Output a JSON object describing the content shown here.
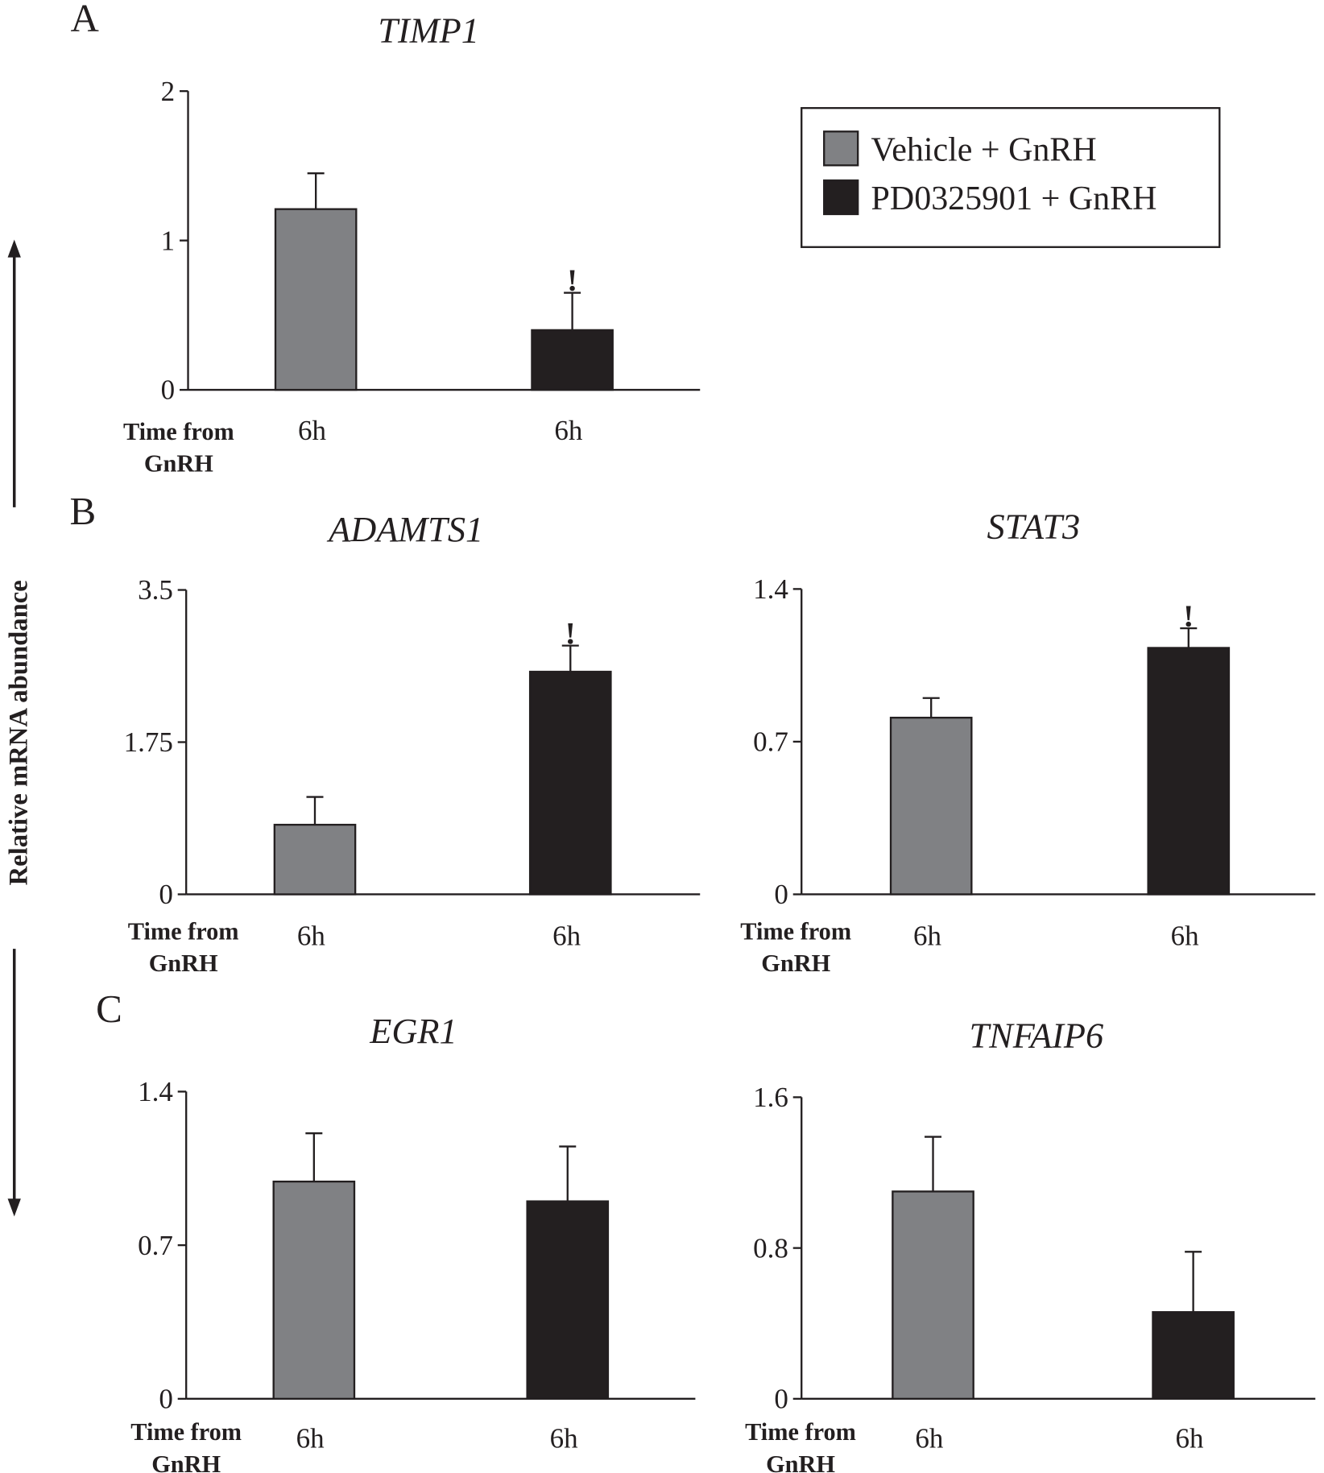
{
  "panel_labels": [
    "A",
    "B",
    "C"
  ],
  "y_axis_label": "Relative mRNA abundance",
  "chart_data": [
    {
      "type": "bar",
      "title": "TIMP1",
      "x_axis_label": [
        "Time from",
        "GnRH"
      ],
      "x_labels": [
        "6h",
        "6h"
      ],
      "ylim": [
        0,
        2
      ],
      "yticks": [
        0,
        1,
        2
      ],
      "series": [
        {
          "name": "Vehicle + GnRH",
          "color": "#808184",
          "values": [
            1.21
          ],
          "errors": [
            0.24
          ],
          "marks": [
            null
          ]
        },
        {
          "name": "PD0325901 + GnRH",
          "color": "#231f20",
          "values": [
            0.4
          ],
          "errors": [
            0.25
          ],
          "marks": [
            "!"
          ]
        }
      ]
    },
    {
      "type": "bar",
      "title": "ADAMTS1",
      "x_axis_label": [
        "Time from",
        "GnRH"
      ],
      "x_labels": [
        "6h",
        "6h"
      ],
      "ylim": [
        0,
        3.5
      ],
      "yticks": [
        0,
        1.75,
        3.5
      ],
      "series": [
        {
          "color": "#808184",
          "values": [
            0.8
          ],
          "errors": [
            0.32
          ],
          "marks": [
            null
          ]
        },
        {
          "color": "#231f20",
          "values": [
            2.56
          ],
          "errors": [
            0.3
          ],
          "marks": [
            "!"
          ]
        }
      ]
    },
    {
      "type": "bar",
      "title": "STAT3",
      "x_axis_label": [
        "Time from",
        "GnRH"
      ],
      "x_labels": [
        "6h",
        "6h"
      ],
      "ylim": [
        0,
        1.4
      ],
      "yticks": [
        0,
        0.7,
        1.4
      ],
      "series": [
        {
          "color": "#808184",
          "values": [
            0.81
          ],
          "errors": [
            0.09
          ],
          "marks": [
            null
          ]
        },
        {
          "color": "#231f20",
          "values": [
            1.13
          ],
          "errors": [
            0.09
          ],
          "marks": [
            "!"
          ]
        }
      ]
    },
    {
      "type": "bar",
      "title": "EGR1",
      "x_axis_label": [
        "Time from",
        "GnRH"
      ],
      "x_labels": [
        "6h",
        "6h"
      ],
      "ylim": [
        0,
        1.4
      ],
      "yticks": [
        0,
        0.7,
        1.4
      ],
      "series": [
        {
          "color": "#808184",
          "values": [
            0.99
          ],
          "errors": [
            0.22
          ],
          "marks": [
            null
          ]
        },
        {
          "color": "#231f20",
          "values": [
            0.9
          ],
          "errors": [
            0.25
          ],
          "marks": [
            null
          ]
        }
      ]
    },
    {
      "type": "bar",
      "title": "TNFAIP6",
      "x_axis_label": [
        "Time from",
        "GnRH"
      ],
      "x_labels": [
        "6h",
        "6h"
      ],
      "ylim": [
        0,
        1.6
      ],
      "yticks": [
        0,
        0.8,
        1.6
      ],
      "series": [
        {
          "color": "#808184",
          "values": [
            1.1
          ],
          "errors": [
            0.29
          ],
          "marks": [
            null
          ]
        },
        {
          "color": "#231f20",
          "values": [
            0.46
          ],
          "errors": [
            0.32
          ],
          "marks": [
            null
          ]
        }
      ]
    }
  ]
}
